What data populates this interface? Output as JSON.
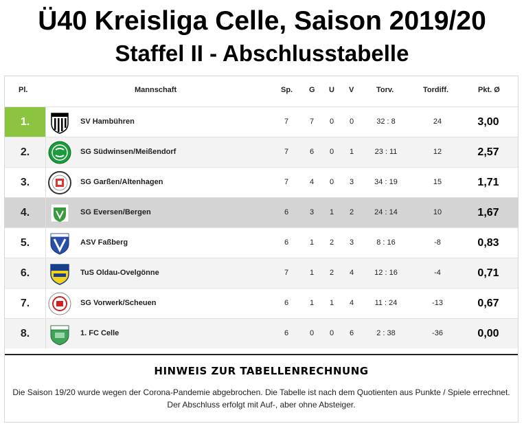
{
  "header": {
    "title": "Ü40 Kreisliga Celle, Saison 2019/20",
    "subtitle": "Staffel II - Abschlusstabelle"
  },
  "table": {
    "columns": {
      "pl": "Pl.",
      "team": "Mannschaft",
      "sp": "Sp.",
      "g": "G",
      "u": "U",
      "v": "V",
      "torv": "Torv.",
      "diff": "Tordiff.",
      "pkt": "Pkt. Ø"
    },
    "rows": [
      {
        "rank": "1.",
        "team": "SV Hambühren",
        "sp": "7",
        "g": "7",
        "u": "0",
        "v": "0",
        "torv": "32 : 8",
        "diff": "24",
        "pkt": "3,00",
        "logo_icon": "sv-hambuehren-crest-icon"
      },
      {
        "rank": "2.",
        "team": "SG Südwinsen/Meißendorf",
        "sp": "7",
        "g": "6",
        "u": "0",
        "v": "1",
        "torv": "23 : 11",
        "diff": "12",
        "pkt": "2,57",
        "logo_icon": "sg-suedwinsen-crest-icon"
      },
      {
        "rank": "3.",
        "team": "SG Garßen/Altenhagen",
        "sp": "7",
        "g": "4",
        "u": "0",
        "v": "3",
        "torv": "34 : 19",
        "diff": "15",
        "pkt": "1,71",
        "logo_icon": "sv-garssen-crest-icon"
      },
      {
        "rank": "4.",
        "team": "SG Eversen/Bergen",
        "sp": "6",
        "g": "3",
        "u": "1",
        "v": "2",
        "torv": "24 : 14",
        "diff": "10",
        "pkt": "1,67",
        "logo_icon": "sg-eversen-crest-icon"
      },
      {
        "rank": "5.",
        "team": "ASV Faßberg",
        "sp": "6",
        "g": "1",
        "u": "2",
        "v": "3",
        "torv": "8 : 16",
        "diff": "-8",
        "pkt": "0,83",
        "logo_icon": "asv-fassberg-crest-icon"
      },
      {
        "rank": "6.",
        "team": "TuS Oldau-Ovelgönne",
        "sp": "7",
        "g": "1",
        "u": "2",
        "v": "4",
        "torv": "12 : 16",
        "diff": "-4",
        "pkt": "0,71",
        "logo_icon": "tus-oldau-crest-icon"
      },
      {
        "rank": "7.",
        "team": "SG Vorwerk/Scheuen",
        "sp": "6",
        "g": "1",
        "u": "1",
        "v": "4",
        "torv": "11 : 24",
        "diff": "-13",
        "pkt": "0,67",
        "logo_icon": "sg-vorwerk-crest-icon"
      },
      {
        "rank": "8.",
        "team": "1. FC Celle",
        "sp": "6",
        "g": "0",
        "u": "0",
        "v": "6",
        "torv": "2 : 38",
        "diff": "-36",
        "pkt": "0,00",
        "logo_icon": "fc-celle-crest-icon"
      }
    ]
  },
  "note": {
    "title": "HINWEIS ZUR TABELLENRECHNUNG",
    "text": "Die Saison 19/20 wurde wegen der Corona-Pandemie abgebrochen. Die Tabelle ist nach dem Quotienten aus Punkte / Spiele errechnet. Der Abschluss erfolgt mit Auf-, aber ohne Absteiger."
  },
  "colors": {
    "first_place": "#8bc53f",
    "highlight_row": "#d4d4d4",
    "alt_row": "#f3f3f3"
  }
}
